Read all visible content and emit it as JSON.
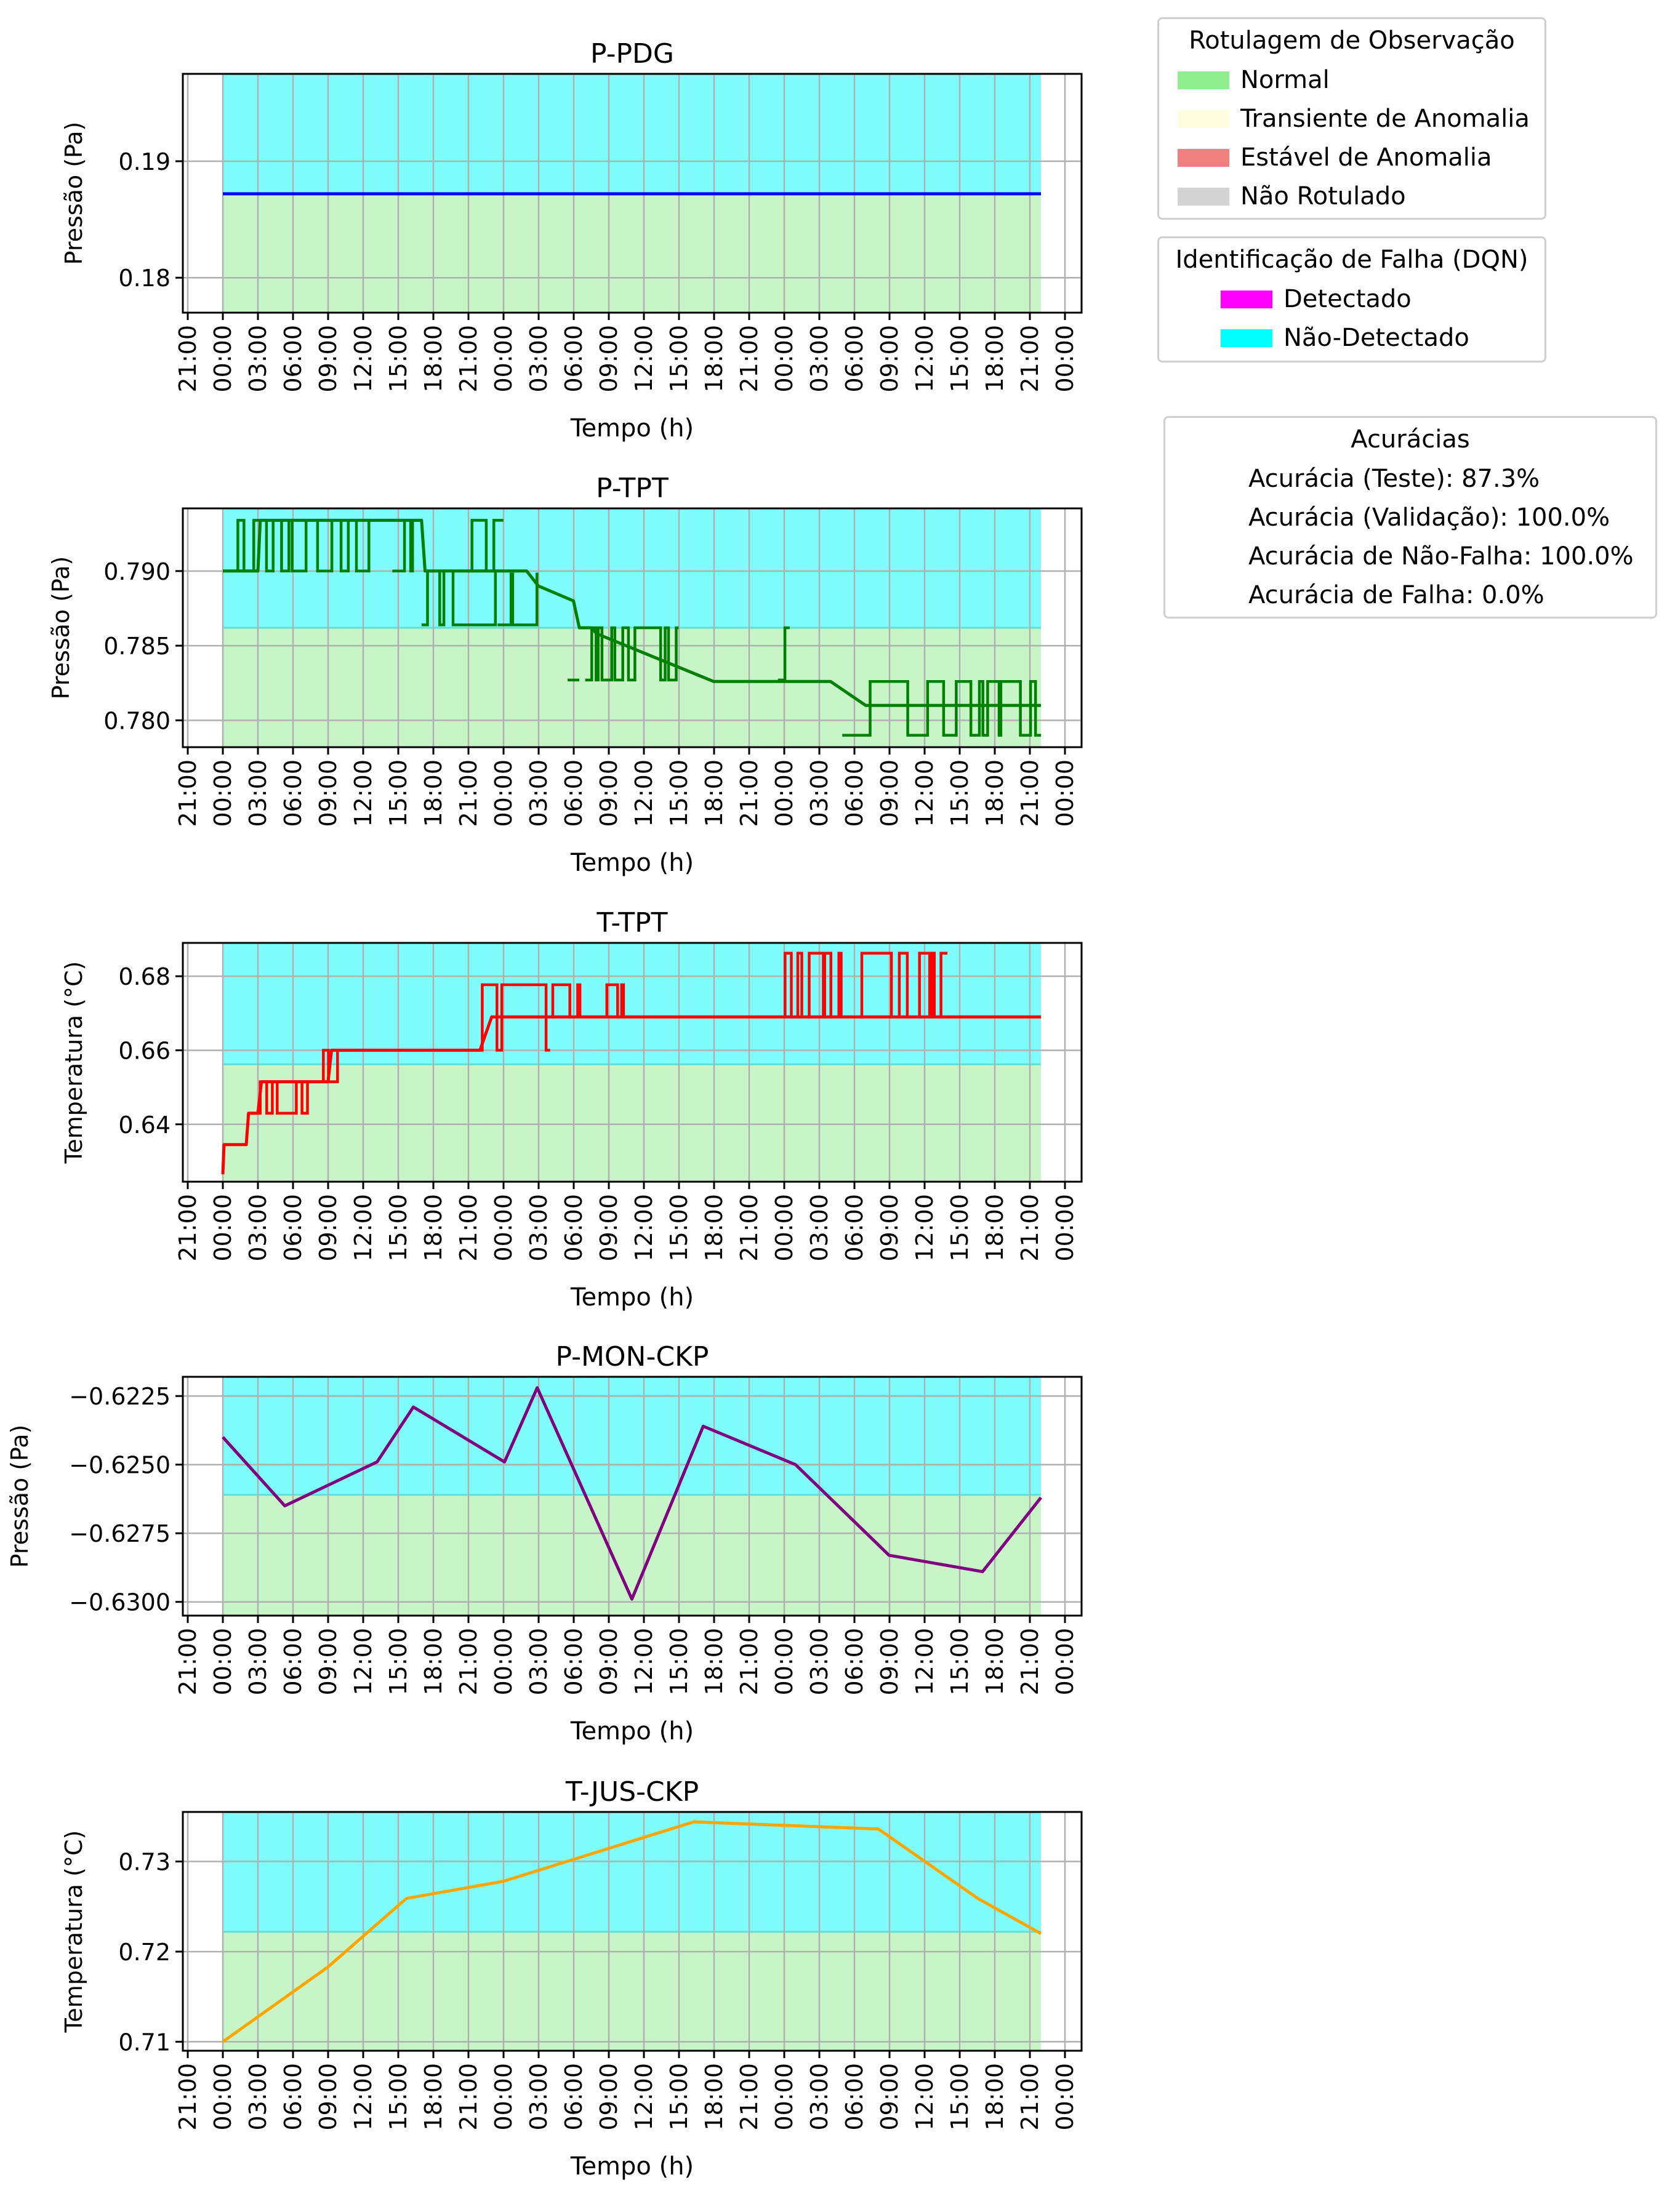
{
  "x_ticks": [
    "21:00",
    "00:00",
    "03:00",
    "06:00",
    "09:00",
    "12:00",
    "15:00",
    "18:00",
    "21:00",
    "00:00",
    "03:00",
    "06:00",
    "09:00",
    "12:00",
    "15:00",
    "18:00",
    "21:00",
    "00:00",
    "03:00",
    "06:00",
    "09:00",
    "12:00",
    "15:00",
    "18:00",
    "21:00",
    "00:00"
  ],
  "colors": {
    "normal_bg": "#c7f5c7",
    "undetected_bg": "#7ffdfd",
    "grid": "#b0b0b0"
  },
  "chart_data": [
    {
      "type": "line",
      "title": "P-PDG",
      "xlabel": "Tempo (h)",
      "ylabel": "Pressão (Pa)",
      "ylim": [
        0.177,
        0.1975
      ],
      "yticks": [
        "0.18",
        "0.19"
      ],
      "ytick_values": [
        0.18,
        0.19
      ],
      "grid": true,
      "normal_band": [
        0.177,
        0.1872
      ],
      "undetected_band": [
        0.1872,
        0.1975
      ],
      "series": [
        {
          "color": "#0000ff",
          "x_hours": [
            0,
            70
          ],
          "values": [
            0.1872,
            0.1872
          ]
        }
      ]
    },
    {
      "type": "line",
      "title": "P-TPT",
      "xlabel": "Tempo (h)",
      "ylabel": "Pressão (Pa)",
      "ylim": [
        0.7782,
        0.7942
      ],
      "yticks": [
        "0.780",
        "0.785",
        "0.790"
      ],
      "ytick_values": [
        0.78,
        0.785,
        0.79
      ],
      "grid": true,
      "normal_band": [
        0.7782,
        0.7862
      ],
      "undetected_band": [
        0.7862,
        0.7942
      ],
      "series": [
        {
          "color": "#008000",
          "x_hours": [
            0,
            3,
            3.2,
            17,
            17.3,
            18,
            26,
            27,
            30,
            30.5,
            31,
            31.5,
            32,
            42,
            52,
            55,
            70
          ],
          "values": [
            0.79,
            0.79,
            0.7934,
            0.7934,
            0.79,
            0.79,
            0.79,
            0.789,
            0.788,
            0.7862,
            0.7862,
            0.7862,
            0.7858,
            0.7826,
            0.7826,
            0.781,
            0.781
          ],
          "oscillations": [
            {
              "from": 0.5,
              "to": 12.5,
              "low": 0.79,
              "high": 0.7934
            },
            {
              "from": 14.5,
              "to": 17,
              "low": 0.79,
              "high": 0.7934
            },
            {
              "from": 17,
              "to": 23.5,
              "low": 0.7864,
              "high": 0.79
            },
            {
              "from": 21,
              "to": 24,
              "low": 0.79,
              "high": 0.7934
            },
            {
              "from": 23.5,
              "to": 27,
              "low": 0.7864,
              "high": 0.7898
            },
            {
              "from": 29.5,
              "to": 30.5,
              "low": 0.7827,
              "high": 0.7862
            },
            {
              "from": 31,
              "to": 39,
              "low": 0.7827,
              "high": 0.7862
            },
            {
              "from": 47.5,
              "to": 48.5,
              "low": 0.7827,
              "high": 0.7862
            },
            {
              "from": 53,
              "to": 70,
              "low": 0.779,
              "high": 0.7826
            }
          ]
        }
      ]
    },
    {
      "type": "line",
      "title": "T-TPT",
      "xlabel": "Tempo (h)",
      "ylabel": "Temperatura (°C)",
      "ylim": [
        0.6245,
        0.689
      ],
      "yticks": [
        "0.64",
        "0.66",
        "0.68"
      ],
      "ytick_values": [
        0.64,
        0.66,
        0.68
      ],
      "grid": true,
      "normal_band": [
        0.6245,
        0.6562
      ],
      "undetected_band": [
        0.6562,
        0.689
      ],
      "series": [
        {
          "color": "#ff0000",
          "x_hours": [
            0,
            0.1,
            0.3,
            2,
            2.2,
            3,
            3.3,
            9,
            9.3,
            12,
            12.5,
            22,
            23,
            27,
            28,
            70
          ],
          "values": [
            0.6265,
            0.6345,
            0.6345,
            0.6345,
            0.643,
            0.643,
            0.6515,
            0.6515,
            0.66,
            0.66,
            0.66,
            0.66,
            0.669,
            0.669,
            0.669,
            0.669
          ],
          "oscillations": [
            {
              "from": 3,
              "to": 8,
              "low": 0.643,
              "high": 0.6515
            },
            {
              "from": 8,
              "to": 12,
              "low": 0.6515,
              "high": 0.66
            },
            {
              "from": 22,
              "to": 28,
              "low": 0.66,
              "high": 0.6777
            },
            {
              "from": 28,
              "to": 35,
              "low": 0.669,
              "high": 0.6777
            },
            {
              "from": 47.5,
              "to": 62,
              "low": 0.669,
              "high": 0.6862
            }
          ]
        }
      ]
    },
    {
      "type": "line",
      "title": "P-MON-CKP",
      "xlabel": "Tempo (h)",
      "ylabel": "Pressão (Pa)",
      "ylim": [
        -0.6305,
        -0.6218
      ],
      "yticks": [
        "−0.6300",
        "−0.6275",
        "−0.6250",
        "−0.6225"
      ],
      "ytick_values": [
        -0.63,
        -0.6275,
        -0.625,
        -0.6225
      ],
      "grid": true,
      "normal_band": [
        -0.6305,
        -0.6261
      ],
      "undetected_band": [
        -0.6261,
        -0.6218
      ],
      "series": [
        {
          "color": "#800080",
          "x_hours": [
            0,
            5.3,
            13.2,
            16.3,
            24.1,
            26.9,
            35.0,
            41.1,
            49.0,
            57.0,
            65.0,
            70.0
          ],
          "values": [
            -0.624,
            -0.6265,
            -0.6249,
            -0.6229,
            -0.6249,
            -0.6222,
            -0.6299,
            -0.6236,
            -0.625,
            -0.6283,
            -0.6289,
            -0.6262
          ]
        }
      ]
    },
    {
      "type": "line",
      "title": "T-JUS-CKP",
      "xlabel": "Tempo (h)",
      "ylabel": "Temperatura (°C)",
      "ylim": [
        0.709,
        0.7355
      ],
      "yticks": [
        "0.71",
        "0.72",
        "0.73"
      ],
      "ytick_values": [
        0.71,
        0.72,
        0.73
      ],
      "grid": true,
      "normal_band": [
        0.709,
        0.7222
      ],
      "undetected_band": [
        0.7222,
        0.7355
      ],
      "series": [
        {
          "color": "#ffa500",
          "x_hours": [
            0,
            9,
            15.7,
            24,
            40.3,
            56.1,
            64.6,
            70
          ],
          "values": [
            0.71,
            0.7183,
            0.7259,
            0.7278,
            0.7344,
            0.7336,
            0.7259,
            0.722
          ]
        }
      ]
    }
  ],
  "legend_labels": {
    "title": "Rotulagem de Observação",
    "entries": [
      {
        "label": "Normal",
        "color": "#90ee90"
      },
      {
        "label": "Transiente de Anomalia",
        "color": "#fffde0"
      },
      {
        "label": "Estável de Anomalia",
        "color": "#f08080"
      },
      {
        "label": "Não Rotulado",
        "color": "#d3d3d3"
      }
    ]
  },
  "legend_fault": {
    "title": "Identificação de Falha (DQN)",
    "entries": [
      {
        "label": "Detectado",
        "color": "#ff00ff"
      },
      {
        "label": "Não-Detectado",
        "color": "#00ffff"
      }
    ]
  },
  "accuracies": {
    "title": "Acurácias",
    "lines": [
      "Acurácia (Teste): 87.3%",
      "Acurácia (Validação): 100.0%",
      "Acurácia de Não-Falha: 100.0%",
      "Acurácia de Falha: 0.0%"
    ]
  }
}
